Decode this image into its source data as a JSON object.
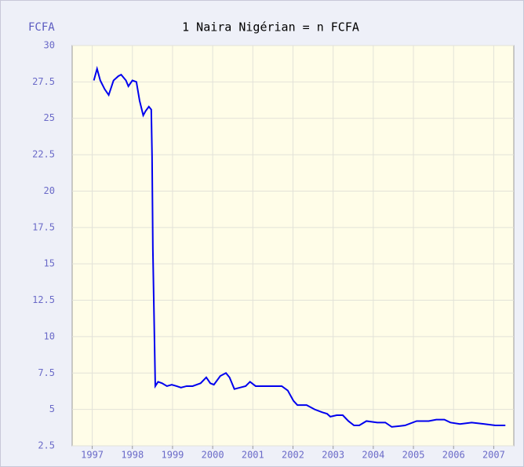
{
  "chart_data": {
    "type": "line",
    "title": "1 Naira Nigérian = n FCFA",
    "y_label": "FCFA",
    "xlim": [
      1996.5,
      2007.5
    ],
    "xticks": [
      1997,
      1998,
      1999,
      2000,
      2001,
      2002,
      2003,
      2004,
      2005,
      2006,
      2007
    ],
    "ylim": [
      2.5,
      30
    ],
    "yticks": [
      2.5,
      5,
      7.5,
      10,
      12.5,
      15,
      17.5,
      20,
      22.5,
      25,
      27.5,
      30
    ],
    "grid": true,
    "series": [
      {
        "name": "FCFA",
        "color": "#0000ee",
        "x": [
          1997.04,
          1997.12,
          1997.2,
          1997.31,
          1997.41,
          1997.53,
          1997.65,
          1997.72,
          1997.84,
          1997.9,
          1998.0,
          1998.1,
          1998.18,
          1998.27,
          1998.33,
          1998.41,
          1998.47,
          1998.49,
          1998.51,
          1998.55,
          1998.57,
          1998.64,
          1998.74,
          1998.86,
          1998.98,
          1999.1,
          1999.21,
          1999.35,
          1999.5,
          1999.7,
          1999.84,
          1999.94,
          2000.03,
          2000.19,
          2000.33,
          2000.42,
          2000.54,
          2000.68,
          2000.82,
          2000.93,
          2001.07,
          2001.27,
          2001.46,
          2001.72,
          2001.87,
          2002.01,
          2002.11,
          2002.34,
          2002.54,
          2002.73,
          2002.85,
          2002.93,
          2003.09,
          2003.24,
          2003.38,
          2003.52,
          2003.65,
          2003.83,
          2004.1,
          2004.3,
          2004.46,
          2004.79,
          2005.08,
          2005.38,
          2005.57,
          2005.77,
          2005.92,
          2006.16,
          2006.45,
          2006.75,
          2007.04,
          2007.29
        ],
        "values": [
          27.6,
          28.4,
          27.6,
          27.0,
          26.6,
          27.6,
          27.9,
          28.0,
          27.6,
          27.2,
          27.6,
          27.5,
          26.2,
          25.2,
          25.5,
          25.8,
          25.6,
          22.4,
          16.0,
          9.8,
          6.6,
          6.9,
          6.8,
          6.6,
          6.7,
          6.6,
          6.5,
          6.6,
          6.6,
          6.8,
          7.2,
          6.8,
          6.7,
          7.3,
          7.5,
          7.2,
          6.4,
          6.5,
          6.6,
          6.9,
          6.6,
          6.6,
          6.6,
          6.6,
          6.3,
          5.6,
          5.3,
          5.3,
          5.0,
          4.8,
          4.7,
          4.5,
          4.6,
          4.6,
          4.2,
          3.9,
          3.9,
          4.2,
          4.1,
          4.1,
          3.8,
          3.9,
          4.2,
          4.2,
          4.3,
          4.3,
          4.1,
          4.0,
          4.1,
          4.0,
          3.9,
          3.9
        ]
      }
    ]
  }
}
